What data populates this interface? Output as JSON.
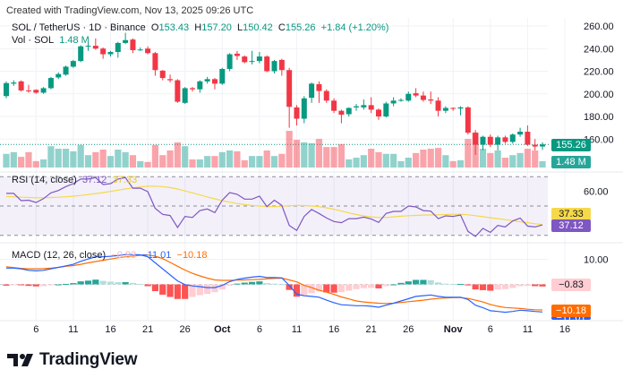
{
  "watermark": "Created with TradingView.com, Nov 13, 2025 09:26 UTC",
  "legend": {
    "symbol": "SOL / TetherUS · 1D · Binance",
    "o_label": "O",
    "o": "153.43",
    "h_label": "H",
    "h": "157.20",
    "l_label": "L",
    "l": "150.42",
    "c_label": "C",
    "c": "155.26",
    "change": "+1.84 (+1.20%)",
    "vol_label": "Vol · SOL",
    "vol": "1.48 M"
  },
  "rsi_legend": {
    "label": "RSI (14, close)",
    "rsi": "37.12",
    "ma": "37.33"
  },
  "macd_legend": {
    "label": "MACD (12, 26, close)",
    "hist": "−0.83",
    "macd": "−11.01",
    "signal": "−10.18"
  },
  "badges": {
    "price": "155.26",
    "volume": "1.48 M",
    "rsi_ma": "37.33",
    "rsi": "37.12",
    "hist": "−0.83",
    "signal": "−10.18",
    "macd": "−11.01"
  },
  "logo_text": "TradingView",
  "colors": {
    "up": "#089981",
    "down": "#f23645",
    "rsi": "#7e57c2",
    "rsi_ma": "#f5d94a",
    "macd": "#2962ff",
    "signal": "#ff6d00",
    "hist_up": "#26a69a",
    "hist_up_light": "#b2dfdb",
    "hist_down": "#ff5252",
    "hist_down_light": "#ffcdd2"
  },
  "chart_data": {
    "type": "candlestick",
    "title": "SOL / TetherUS · 1D · Binance",
    "price_axis": {
      "ticks": [
        "260.00",
        "240.00",
        "220.00",
        "200.00",
        "180.00",
        "160.00"
      ],
      "range": [
        150,
        266
      ]
    },
    "rsi_axis": {
      "ticks": [
        "60.00"
      ],
      "bands": [
        30,
        50,
        70
      ]
    },
    "macd_axis": {
      "ticks": [
        "10.00"
      ]
    },
    "time_axis": {
      "ticks": [
        "6",
        "11",
        "16",
        "21",
        "26",
        "Oct",
        "6",
        "11",
        "16",
        "21",
        "26",
        "Nov",
        "6",
        "11",
        "16"
      ],
      "tick_dates": [
        "2025-09-06",
        "2025-09-11",
        "2025-09-16",
        "2025-09-21",
        "2025-09-26",
        "2025-10-01",
        "2025-10-06",
        "2025-10-11",
        "2025-10-16",
        "2025-10-21",
        "2025-10-26",
        "2025-11-01",
        "2025-11-06",
        "2025-11-11",
        "2025-11-16"
      ]
    },
    "columns": [
      "date",
      "open",
      "high",
      "low",
      "close",
      "volume_M",
      "rsi",
      "rsi_ma",
      "macd",
      "signal",
      "histogram"
    ],
    "rows": [
      [
        "2025-09-02",
        198,
        211,
        196,
        209.5,
        3.2,
        58.6,
        56.5,
        6.5,
        7.0,
        -0.5
      ],
      [
        "2025-09-03",
        209,
        212,
        207,
        210,
        3.6,
        58.6,
        56.3,
        6.5,
        6.7,
        -0.2
      ],
      [
        "2025-09-04",
        211,
        212,
        202,
        203,
        2.5,
        53.7,
        56.0,
        6.2,
        6.4,
        -0.2
      ],
      [
        "2025-09-05",
        203,
        208,
        201,
        202.5,
        3.6,
        54.0,
        55.8,
        5.6,
        6.2,
        -0.6
      ],
      [
        "2025-09-06",
        203.5,
        204,
        200,
        201,
        1.5,
        52.4,
        55.6,
        5.4,
        6.2,
        -0.8
      ],
      [
        "2025-09-07",
        201,
        206,
        200,
        205,
        1.9,
        55.0,
        55.6,
        5.6,
        6.3,
        -0.7
      ],
      [
        "2025-09-08",
        205,
        215,
        204,
        214,
        5.0,
        59.0,
        55.8,
        6.2,
        6.5,
        -0.3
      ],
      [
        "2025-09-09",
        214.5,
        219,
        213,
        217.5,
        4.4,
        60.6,
        56.0,
        6.8,
        6.8,
        0.0
      ],
      [
        "2025-09-10",
        217,
        225,
        216,
        224,
        4.4,
        63.3,
        56.3,
        7.4,
        7.2,
        0.2
      ],
      [
        "2025-09-11",
        224,
        230,
        223,
        229,
        3.8,
        65.3,
        56.7,
        8.0,
        7.5,
        0.5
      ],
      [
        "2025-09-12",
        229,
        243,
        228,
        242,
        5.3,
        68.4,
        57.2,
        9.2,
        8.0,
        1.2
      ],
      [
        "2025-09-13",
        242,
        245,
        238,
        242.5,
        2.9,
        68.4,
        57.8,
        10.1,
        8.6,
        1.5
      ],
      [
        "2025-09-14",
        242.5,
        249,
        239,
        240,
        3.6,
        69.4,
        58.5,
        11.0,
        9.1,
        1.9
      ],
      [
        "2025-09-15",
        240,
        241,
        231,
        235,
        4.2,
        64.7,
        59.2,
        11.0,
        9.6,
        1.4
      ],
      [
        "2025-09-16",
        235,
        238,
        233,
        237,
        2.7,
        65.3,
        60.0,
        11.2,
        10.1,
        1.1
      ],
      [
        "2025-09-17",
        237,
        246,
        232,
        245,
        4.2,
        68.4,
        60.8,
        11.5,
        10.6,
        0.9
      ],
      [
        "2025-09-18",
        245,
        254,
        244,
        247.5,
        3.6,
        69.4,
        61.6,
        11.9,
        11.0,
        0.9
      ],
      [
        "2025-09-19",
        248,
        249,
        236,
        238.6,
        2.9,
        62.2,
        62.4,
        11.9,
        11.3,
        0.6
      ],
      [
        "2025-09-20",
        239,
        241,
        238,
        239.2,
        1.5,
        62.2,
        63.0,
        11.8,
        11.6,
        0.2
      ],
      [
        "2025-09-21",
        240,
        242,
        235,
        236,
        1.3,
        59.8,
        63.5,
        11.0,
        11.7,
        -0.7
      ],
      [
        "2025-09-22",
        236,
        237,
        216,
        221,
        5.3,
        48.4,
        63.6,
        8.6,
        11.3,
        -2.7
      ],
      [
        "2025-09-23",
        220.5,
        221,
        212,
        214,
        2.9,
        44.3,
        63.3,
        6.2,
        10.3,
        -4.1
      ],
      [
        "2025-09-24",
        213,
        217,
        210,
        212,
        4.0,
        43.5,
        62.6,
        3.8,
        8.8,
        -5.0
      ],
      [
        "2025-09-25",
        212,
        213,
        192,
        193,
        5.9,
        35.3,
        61.6,
        1.4,
        7.2,
        -5.8
      ],
      [
        "2025-09-26",
        192,
        206,
        191,
        205,
        5.0,
        42.9,
        60.3,
        -0.1,
        5.7,
        -5.8
      ],
      [
        "2025-09-27",
        205,
        206,
        202,
        204,
        1.9,
        42.2,
        59.0,
        -0.6,
        4.4,
        -5.0
      ],
      [
        "2025-09-28",
        204,
        212,
        201,
        211,
        1.9,
        46.9,
        57.6,
        -0.9,
        3.4,
        -4.3
      ],
      [
        "2025-09-29",
        211,
        215,
        209,
        213,
        2.7,
        48.0,
        56.2,
        -1.3,
        2.5,
        -3.8
      ],
      [
        "2025-09-30",
        213,
        214,
        204,
        209,
        2.7,
        45.5,
        54.9,
        -1.3,
        1.8,
        -3.1
      ],
      [
        "2025-10-01",
        209,
        223,
        208,
        222,
        3.6,
        54.0,
        53.7,
        -0.4,
        1.6,
        -2.0
      ],
      [
        "2025-10-02",
        222,
        236,
        220,
        235,
        4.0,
        59.2,
        52.6,
        1.1,
        1.6,
        -0.5
      ],
      [
        "2025-10-03",
        235.5,
        238,
        230,
        233.5,
        3.8,
        58.0,
        51.7,
        2.0,
        1.7,
        0.3
      ],
      [
        "2025-10-04",
        233,
        234,
        227,
        228,
        1.7,
        54.7,
        51.0,
        2.5,
        1.8,
        0.7
      ],
      [
        "2025-10-05",
        228.5,
        238,
        226,
        229,
        2.7,
        54.7,
        50.4,
        2.9,
        1.9,
        1.0
      ],
      [
        "2025-10-06",
        229,
        237,
        227,
        233,
        2.7,
        56.7,
        50.0,
        3.2,
        2.0,
        1.2
      ],
      [
        "2025-10-07",
        233,
        234,
        219,
        220,
        4.0,
        49.6,
        49.7,
        2.7,
        2.2,
        0.5
      ],
      [
        "2025-10-08",
        220,
        230,
        218,
        229,
        2.7,
        54.0,
        49.6,
        2.7,
        2.4,
        0.3
      ],
      [
        "2025-10-09",
        230,
        231,
        216,
        221,
        3.2,
        50.4,
        49.8,
        2.6,
        2.5,
        0.1
      ],
      [
        "2025-10-10",
        221,
        223,
        170,
        188.5,
        8.6,
        36.7,
        50.2,
        -0.4,
        1.8,
        -2.2
      ],
      [
        "2025-10-11",
        188,
        190,
        172,
        178,
        6.5,
        33.3,
        50.4,
        -3.9,
        1.0,
        -4.9
      ],
      [
        "2025-10-12",
        178,
        198,
        174,
        196,
        5.9,
        42.9,
        50.3,
        -4.5,
        -0.4,
        -4.1
      ],
      [
        "2025-10-13",
        196.5,
        210,
        192,
        209,
        5.7,
        47.6,
        50.0,
        -4.8,
        -1.3,
        -3.5
      ],
      [
        "2025-10-14",
        208.5,
        211,
        192,
        202.5,
        6.7,
        44.9,
        49.6,
        -5.1,
        -2.3,
        -2.8
      ],
      [
        "2025-10-15",
        202.5,
        204,
        192,
        194,
        4.8,
        41.8,
        48.8,
        -6.3,
        -3.1,
        -3.2
      ],
      [
        "2025-10-16",
        194,
        196,
        183,
        185,
        4.8,
        39.4,
        47.8,
        -7.3,
        -4.0,
        -3.3
      ],
      [
        "2025-10-17",
        185,
        186,
        174,
        181.5,
        5.5,
        38.6,
        46.6,
        -8.1,
        -5.0,
        -3.1
      ],
      [
        "2025-10-18",
        182,
        188,
        180,
        187.5,
        1.9,
        41.4,
        45.3,
        -8.3,
        -5.8,
        -2.5
      ],
      [
        "2025-10-19",
        188,
        191,
        185,
        189,
        2.3,
        41.4,
        44.2,
        -8.5,
        -6.6,
        -1.9
      ],
      [
        "2025-10-20",
        188,
        195,
        186,
        190,
        2.9,
        42.4,
        43.3,
        -8.5,
        -7.0,
        -1.5
      ],
      [
        "2025-10-21",
        190,
        197,
        183,
        186,
        4.4,
        41.2,
        42.6,
        -8.7,
        -7.3,
        -1.4
      ],
      [
        "2025-10-22",
        186,
        187,
        177,
        180,
        3.6,
        38.8,
        42.2,
        -9.1,
        -7.5,
        -1.6
      ],
      [
        "2025-10-23",
        180,
        193,
        179,
        191.5,
        3.2,
        44.9,
        42.2,
        -8.3,
        -7.6,
        -0.7
      ],
      [
        "2025-10-24",
        191.5,
        197,
        189,
        194,
        3.2,
        46.3,
        42.6,
        -7.5,
        -7.5,
        0.0
      ],
      [
        "2025-10-25",
        194.5,
        196,
        193,
        194.6,
        1.5,
        46.3,
        43.0,
        -6.6,
        -7.2,
        0.6
      ],
      [
        "2025-10-26",
        194,
        202,
        193,
        200,
        2.3,
        50.0,
        43.4,
        -5.7,
        -6.9,
        1.2
      ],
      [
        "2025-10-27",
        200.5,
        205,
        197,
        198.5,
        3.4,
        49.4,
        43.6,
        -4.8,
        -6.6,
        1.8
      ],
      [
        "2025-10-28",
        198.5,
        202,
        193,
        194.6,
        4.2,
        46.9,
        43.8,
        -4.5,
        -6.3,
        1.8
      ],
      [
        "2025-10-29",
        195,
        202,
        191,
        194,
        4.4,
        46.5,
        43.9,
        -4.2,
        -5.9,
        1.7
      ],
      [
        "2025-10-30",
        194,
        197,
        180,
        185,
        4.6,
        41.4,
        44.0,
        -4.8,
        -5.6,
        0.8
      ],
      [
        "2025-10-31",
        185,
        189,
        183,
        187.5,
        2.9,
        43.3,
        44.2,
        -5.1,
        -5.4,
        0.3
      ],
      [
        "2025-11-01",
        187.5,
        188,
        185,
        187,
        1.5,
        42.9,
        44.4,
        -5.1,
        -5.3,
        0.2
      ],
      [
        "2025-11-02",
        187,
        189,
        181,
        188,
        1.7,
        43.9,
        44.4,
        -5.1,
        -5.3,
        0.2
      ],
      [
        "2025-11-03",
        188,
        189,
        164,
        165.6,
        6.7,
        32.7,
        44.0,
        -6.0,
        -5.6,
        -0.4
      ],
      [
        "2025-11-04",
        165.6,
        168,
        146,
        155,
        8.2,
        29.2,
        43.4,
        -8.3,
        -6.3,
        -2.0
      ],
      [
        "2025-11-05",
        155,
        163,
        150,
        162,
        4.4,
        34.7,
        42.7,
        -9.3,
        -7.0,
        -2.3
      ],
      [
        "2025-11-06",
        162,
        164,
        153,
        155,
        3.4,
        32.0,
        42.0,
        -10.5,
        -8.0,
        -2.5
      ],
      [
        "2025-11-07",
        155,
        163,
        150,
        161.5,
        4.0,
        36.7,
        41.4,
        -10.8,
        -8.7,
        -2.1
      ],
      [
        "2025-11-08",
        161.5,
        163,
        156,
        157.5,
        2.3,
        35.7,
        40.7,
        -11.1,
        -9.2,
        -1.9
      ],
      [
        "2025-11-09",
        157.5,
        165,
        156,
        164,
        2.9,
        39.8,
        40.0,
        -10.8,
        -9.4,
        -1.4
      ],
      [
        "2025-11-10",
        164,
        170,
        162,
        166.5,
        3.4,
        41.8,
        39.3,
        -10.3,
        -9.6,
        -0.7
      ],
      [
        "2025-11-11",
        166.5,
        172,
        154,
        155,
        4.4,
        36.3,
        38.6,
        -10.5,
        -9.9,
        -0.6
      ],
      [
        "2025-11-12",
        155,
        160,
        150,
        153.4,
        4.0,
        35.7,
        37.9,
        -10.8,
        -10.1,
        -0.7
      ],
      [
        "2025-11-13",
        153.43,
        157.2,
        150.42,
        155.26,
        1.48,
        37.12,
        37.33,
        -11.01,
        -10.18,
        -0.83
      ]
    ]
  }
}
